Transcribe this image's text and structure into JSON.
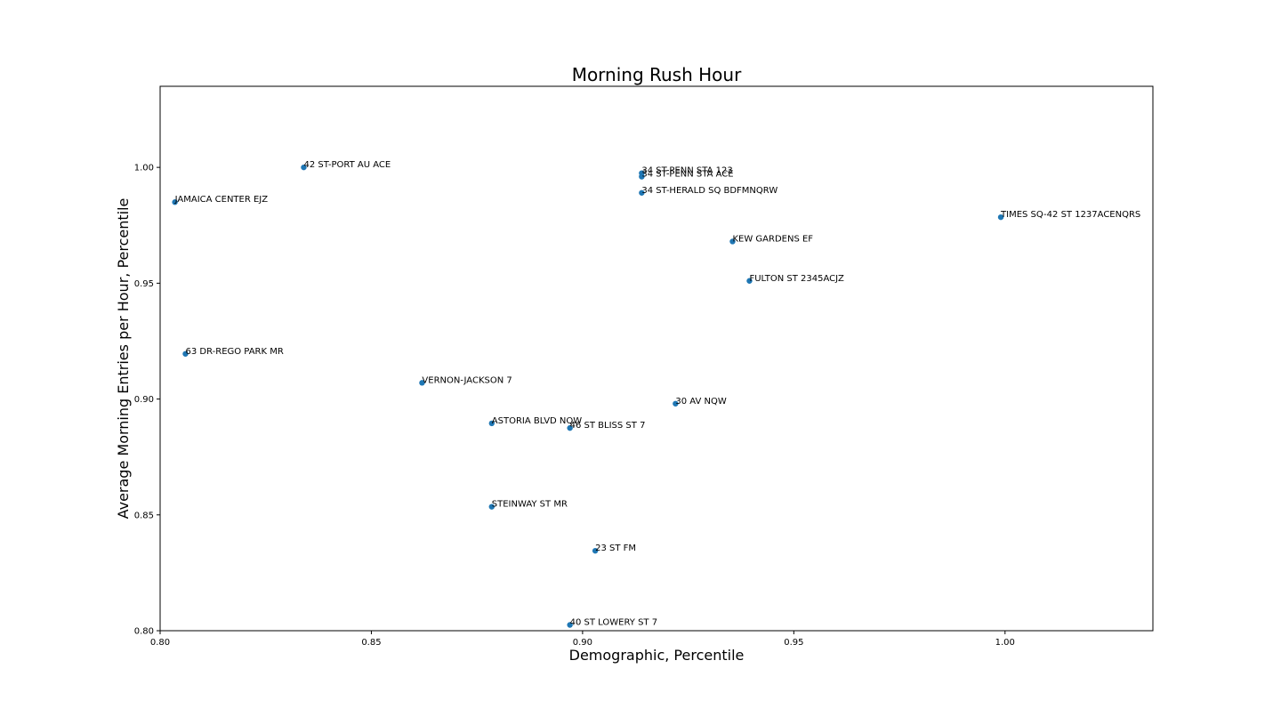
{
  "chart_data": {
    "type": "scatter",
    "title": "Morning Rush Hour",
    "xlabel": "Demographic, Percentile",
    "ylabel": "Average Morning Entries per Hour, Percentile",
    "xlim": [
      0.8,
      1.035
    ],
    "ylim": [
      0.8,
      1.035
    ],
    "xticks": [
      "0.80",
      "0.85",
      "0.90",
      "0.95",
      "1.00"
    ],
    "yticks": [
      "0.80",
      "0.85",
      "0.90",
      "0.95",
      "1.00"
    ],
    "grid": false,
    "marker_color": "#1f77b4",
    "points": [
      {
        "label": "42 ST-PORT AU ACE",
        "x": 0.834,
        "y": 1.0
      },
      {
        "label": "JAMAICA CENTER EJZ",
        "x": 0.8035,
        "y": 0.985
      },
      {
        "label": "34 ST-PENN STA 123",
        "x": 0.914,
        "y": 0.9975
      },
      {
        "label": "34 ST-PENN STA ACE",
        "x": 0.914,
        "y": 0.996
      },
      {
        "label": "34 ST-HERALD SQ BDFMNQRW",
        "x": 0.914,
        "y": 0.989
      },
      {
        "label": "TIMES SQ-42 ST 1237ACENQRS",
        "x": 0.999,
        "y": 0.9785
      },
      {
        "label": "KEW GARDENS EF",
        "x": 0.9355,
        "y": 0.968
      },
      {
        "label": "FULTON ST 2345ACJZ",
        "x": 0.9395,
        "y": 0.951
      },
      {
        "label": "63 DR-REGO PARK MR",
        "x": 0.806,
        "y": 0.9195
      },
      {
        "label": "VERNON-JACKSON 7",
        "x": 0.862,
        "y": 0.907
      },
      {
        "label": "30 AV NQW",
        "x": 0.922,
        "y": 0.898
      },
      {
        "label": "ASTORIA BLVD NQW",
        "x": 0.8785,
        "y": 0.8895
      },
      {
        "label": "46 ST BLISS ST 7",
        "x": 0.897,
        "y": 0.8875
      },
      {
        "label": "STEINWAY ST MR",
        "x": 0.8785,
        "y": 0.8535
      },
      {
        "label": "23 ST FM",
        "x": 0.903,
        "y": 0.8345
      },
      {
        "label": "40 ST LOWERY ST 7",
        "x": 0.897,
        "y": 0.8025
      }
    ]
  }
}
